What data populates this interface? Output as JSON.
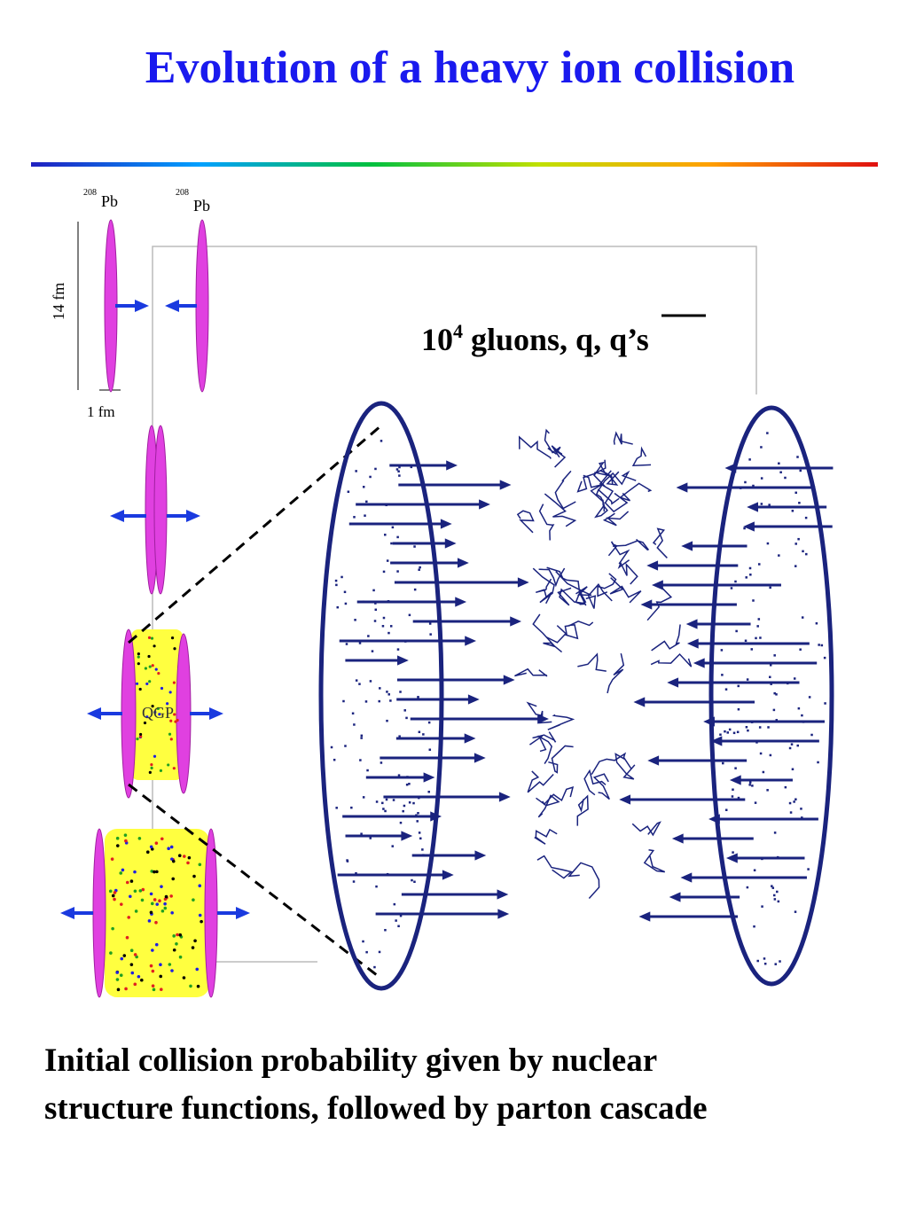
{
  "title": "Evolution of a heavy ion collision",
  "labels": {
    "pb_left_mass": "208",
    "pb_left": "Pb",
    "pb_right_mass": "208",
    "pb_right": "Pb",
    "length": "14 fm",
    "width": "1 fm",
    "qgp": "QGP"
  },
  "annotation": {
    "base": "10",
    "exponent": "4",
    "text": " gluons, q, ",
    "qbar": "q",
    "suffix": "’s"
  },
  "caption": [
    "Initial collision probability given by nuclear",
    "structure functions, followed by parton cascade"
  ]
}
